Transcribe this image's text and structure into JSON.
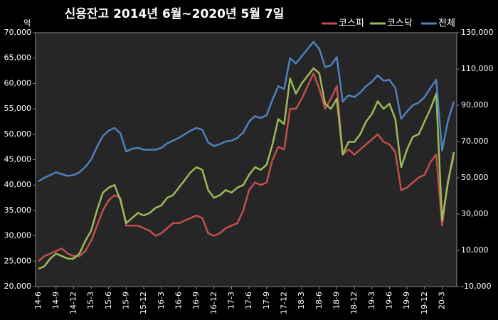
{
  "chart_data": {
    "type": "line",
    "title": "신용잔고 2014년 6월~2020년 5월 7일",
    "y_unit": "억",
    "legend": "top-right",
    "grid": false,
    "background": "#000000",
    "plot_background": "#262626",
    "categories": [
      "14-6",
      null,
      null,
      "14-9",
      null,
      null,
      "14-12",
      null,
      null,
      "15-3",
      null,
      null,
      "15-6",
      null,
      null,
      "15-9",
      null,
      null,
      "15-12",
      null,
      null,
      "16-3",
      null,
      null,
      "16-6",
      null,
      null,
      "16-9",
      null,
      null,
      "16-12",
      null,
      null,
      "17-3",
      null,
      null,
      "17-6",
      null,
      null,
      "17-9",
      null,
      null,
      "17-12",
      null,
      null,
      "18-3",
      null,
      null,
      "18-6",
      null,
      null,
      "18-9",
      null,
      null,
      "18-12",
      null,
      null,
      "19-3",
      null,
      null,
      "19-6",
      null,
      null,
      "19-9",
      null,
      null,
      "19-12",
      null,
      null,
      "20-3",
      null,
      null
    ],
    "ylim": [
      20000,
      70000
    ],
    "yticks": [
      {
        "value": 20000,
        "label": "20,000"
      },
      {
        "value": 25000,
        "label": "25,000"
      },
      {
        "value": 30000,
        "label": "30,000"
      },
      {
        "value": 35000,
        "label": "35,000"
      },
      {
        "value": 40000,
        "label": "40,000"
      },
      {
        "value": 45000,
        "label": "45,000"
      },
      {
        "value": 50000,
        "label": "50,000"
      },
      {
        "value": 55000,
        "label": "55,000"
      },
      {
        "value": 60000,
        "label": "60,000"
      },
      {
        "value": 65000,
        "label": "65,000"
      },
      {
        "value": 70000,
        "label": "70,000"
      }
    ],
    "y2lim": [
      -10000,
      130000
    ],
    "y2ticks": [
      {
        "value": -10000,
        "label": "-10,000"
      },
      {
        "value": 10000,
        "label": "10,000"
      },
      {
        "value": 30000,
        "label": "30,000"
      },
      {
        "value": 50000,
        "label": "50,000"
      },
      {
        "value": 70000,
        "label": "70,000"
      },
      {
        "value": 90000,
        "label": "90,000"
      },
      {
        "value": 110000,
        "label": "110,000"
      },
      {
        "value": 130000,
        "label": "130,000"
      }
    ],
    "series": [
      {
        "name": "코스피",
        "color": "#c0504d",
        "values": [
          25000,
          26000,
          26500,
          27000,
          27500,
          26500,
          26000,
          26000,
          27000,
          29000,
          32000,
          35000,
          37000,
          38000,
          37500,
          32000,
          32000,
          32000,
          31500,
          31000,
          30000,
          30500,
          31500,
          32500,
          32500,
          33000,
          33500,
          34000,
          33500,
          30500,
          30000,
          30500,
          31500,
          32000,
          32500,
          35000,
          39000,
          40500,
          40000,
          40500,
          45000,
          47500,
          47000,
          55000,
          55000,
          57000,
          59500,
          62000,
          59000,
          55000,
          57000,
          59500,
          46000,
          47000,
          46000,
          47000,
          48000,
          49000,
          50000,
          48500,
          48000,
          46500,
          39000,
          39500,
          40500,
          41500,
          42000,
          44500,
          46000,
          32000,
          41000,
          45500
        ]
      },
      {
        "name": "코스닥",
        "color": "#9bbb59",
        "values": [
          23500,
          24000,
          25500,
          26500,
          26000,
          25500,
          25500,
          26500,
          29000,
          31000,
          35000,
          38500,
          39500,
          40000,
          37000,
          32500,
          33500,
          34500,
          34000,
          34500,
          35500,
          36000,
          37500,
          38000,
          39500,
          41000,
          42500,
          43500,
          43000,
          39000,
          37500,
          38000,
          39000,
          38500,
          39500,
          40000,
          42000,
          43500,
          43000,
          44000,
          48000,
          53000,
          52000,
          61000,
          58000,
          60000,
          61500,
          63000,
          62000,
          56000,
          55000,
          57000,
          46000,
          48500,
          48500,
          50000,
          52500,
          54000,
          56500,
          55000,
          56000,
          53000,
          43500,
          47000,
          49500,
          50000,
          52500,
          55000,
          58000,
          33000,
          40500,
          46500
        ]
      },
      {
        "name": "전체",
        "color": "#4f81bd",
        "axis": "y2",
        "values": [
          48000,
          50000,
          51500,
          53000,
          52000,
          51000,
          51500,
          53000,
          56000,
          60000,
          67000,
          73000,
          76000,
          77500,
          74500,
          64500,
          66000,
          66500,
          65500,
          65500,
          65500,
          66500,
          69000,
          70500,
          72000,
          74000,
          76000,
          77500,
          76500,
          69500,
          67500,
          68500,
          70000,
          70500,
          72000,
          75000,
          81000,
          84000,
          83000,
          84500,
          93000,
          100500,
          99000,
          116000,
          113000,
          117000,
          121000,
          125000,
          121000,
          111000,
          112000,
          116500,
          92000,
          95500,
          94500,
          97000,
          100500,
          103000,
          106500,
          103500,
          104000,
          99500,
          82500,
          86500,
          90000,
          91500,
          94500,
          99500,
          104000,
          65000,
          81500,
          92000
        ]
      }
    ]
  }
}
